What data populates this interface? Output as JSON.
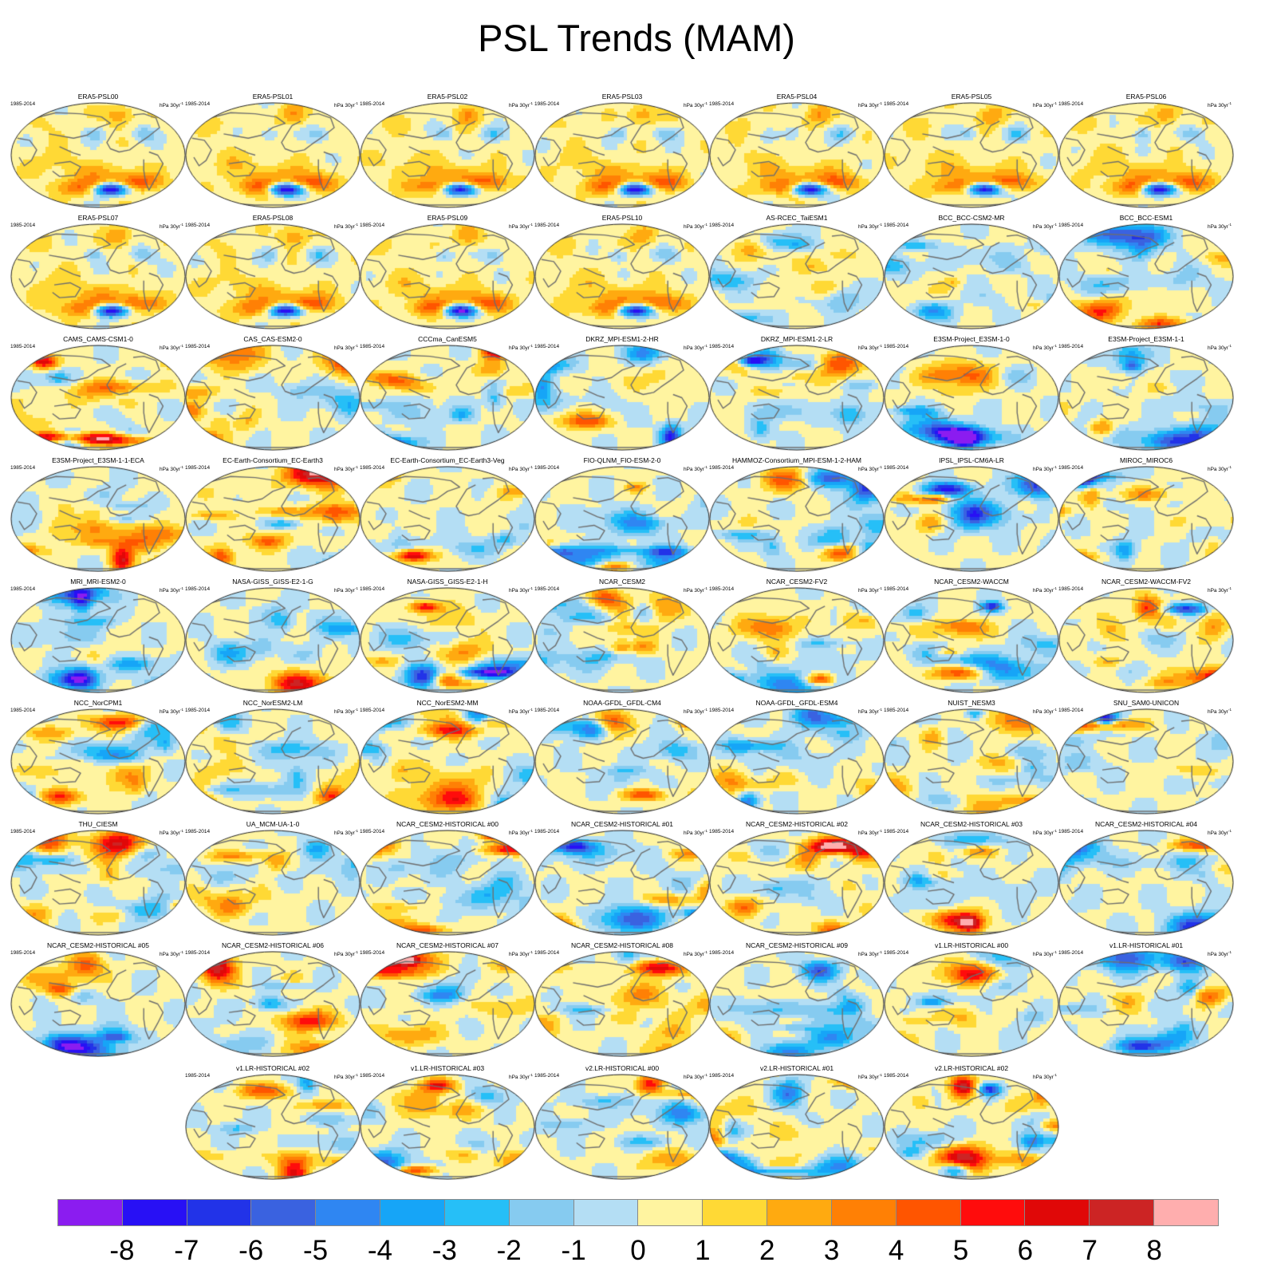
{
  "figure": {
    "title": "PSL Trends (MAM)",
    "period": "1985-2014",
    "units": {
      "base": "hPa 30yr",
      "sup": "-1"
    }
  },
  "panels": [
    {
      "name": "ERA5-PSL00",
      "pattern": "era5"
    },
    {
      "name": "ERA5-PSL01",
      "pattern": "era5"
    },
    {
      "name": "ERA5-PSL02",
      "pattern": "era5"
    },
    {
      "name": "ERA5-PSL03",
      "pattern": "era5"
    },
    {
      "name": "ERA5-PSL04",
      "pattern": "era5"
    },
    {
      "name": "ERA5-PSL05",
      "pattern": "era5"
    },
    {
      "name": "ERA5-PSL06",
      "pattern": "era5"
    },
    {
      "name": "ERA5-PSL07",
      "pattern": "era5"
    },
    {
      "name": "ERA5-PSL08",
      "pattern": "era5"
    },
    {
      "name": "ERA5-PSL09",
      "pattern": "era5"
    },
    {
      "name": "ERA5-PSL10",
      "pattern": "era5"
    },
    {
      "name": "AS-RCEC_TaiESM1",
      "pattern": "model"
    },
    {
      "name": "BCC_BCC-CSM2-MR",
      "pattern": "model"
    },
    {
      "name": "BCC_BCC-ESM1",
      "pattern": "model"
    },
    {
      "name": "CAMS_CAMS-CSM1-0",
      "pattern": "model"
    },
    {
      "name": "CAS_CAS-ESM2-0",
      "pattern": "model"
    },
    {
      "name": "CCCma_CanESM5",
      "pattern": "model"
    },
    {
      "name": "DKRZ_MPI-ESM1-2-HR",
      "pattern": "model"
    },
    {
      "name": "DKRZ_MPI-ESM1-2-LR",
      "pattern": "model"
    },
    {
      "name": "E3SM-Project_E3SM-1-0",
      "pattern": "model"
    },
    {
      "name": "E3SM-Project_E3SM-1-1",
      "pattern": "model"
    },
    {
      "name": "E3SM-Project_E3SM-1-1-ECA",
      "pattern": "model"
    },
    {
      "name": "EC-Earth-Consortium_EC-Earth3",
      "pattern": "model"
    },
    {
      "name": "EC-Earth-Consortium_EC-Earth3-Veg",
      "pattern": "model"
    },
    {
      "name": "FIO-QLNM_FIO-ESM-2-0",
      "pattern": "model"
    },
    {
      "name": "HAMMOZ-Consortium_MPI-ESM-1-2-HAM",
      "pattern": "model"
    },
    {
      "name": "IPSL_IPSL-CM6A-LR",
      "pattern": "model"
    },
    {
      "name": "MIROC_MIROC6",
      "pattern": "model"
    },
    {
      "name": "MRI_MRI-ESM2-0",
      "pattern": "model"
    },
    {
      "name": "NASA-GISS_GISS-E2-1-G",
      "pattern": "model"
    },
    {
      "name": "NASA-GISS_GISS-E2-1-H",
      "pattern": "model"
    },
    {
      "name": "NCAR_CESM2",
      "pattern": "model"
    },
    {
      "name": "NCAR_CESM2-FV2",
      "pattern": "model"
    },
    {
      "name": "NCAR_CESM2-WACCM",
      "pattern": "model"
    },
    {
      "name": "NCAR_CESM2-WACCM-FV2",
      "pattern": "model"
    },
    {
      "name": "NCC_NorCPM1",
      "pattern": "model"
    },
    {
      "name": "NCC_NorESM2-LM",
      "pattern": "model"
    },
    {
      "name": "NCC_NorESM2-MM",
      "pattern": "model"
    },
    {
      "name": "NOAA-GFDL_GFDL-CM4",
      "pattern": "model"
    },
    {
      "name": "NOAA-GFDL_GFDL-ESM4",
      "pattern": "model"
    },
    {
      "name": "NUIST_NESM3",
      "pattern": "model"
    },
    {
      "name": "SNU_SAM0-UNICON",
      "pattern": "model"
    },
    {
      "name": "THU_CIESM",
      "pattern": "model"
    },
    {
      "name": "UA_MCM-UA-1-0",
      "pattern": "model"
    },
    {
      "name": "NCAR_CESM2-HISTORICAL  #00",
      "pattern": "model"
    },
    {
      "name": "NCAR_CESM2-HISTORICAL  #01",
      "pattern": "model"
    },
    {
      "name": "NCAR_CESM2-HISTORICAL  #02",
      "pattern": "model"
    },
    {
      "name": "NCAR_CESM2-HISTORICAL  #03",
      "pattern": "model"
    },
    {
      "name": "NCAR_CESM2-HISTORICAL  #04",
      "pattern": "model"
    },
    {
      "name": "NCAR_CESM2-HISTORICAL  #05",
      "pattern": "model"
    },
    {
      "name": "NCAR_CESM2-HISTORICAL  #06",
      "pattern": "model"
    },
    {
      "name": "NCAR_CESM2-HISTORICAL  #07",
      "pattern": "model"
    },
    {
      "name": "NCAR_CESM2-HISTORICAL  #08",
      "pattern": "model"
    },
    {
      "name": "NCAR_CESM2-HISTORICAL  #09",
      "pattern": "model"
    },
    {
      "name": "v1.LR-HISTORICAL  #00",
      "pattern": "model"
    },
    {
      "name": "v1.LR-HISTORICAL  #01",
      "pattern": "model"
    },
    {
      "name": "v1.LR-HISTORICAL  #02",
      "pattern": "model"
    },
    {
      "name": "v1.LR-HISTORICAL  #03",
      "pattern": "model"
    },
    {
      "name": "v2.LR-HISTORICAL  #00",
      "pattern": "model"
    },
    {
      "name": "v2.LR-HISTORICAL  #01",
      "pattern": "model"
    },
    {
      "name": "v2.LR-HISTORICAL  #02",
      "pattern": "model"
    }
  ],
  "colorbar": {
    "labels": [
      "-8",
      "-7",
      "-6",
      "-5",
      "-4",
      "-3",
      "-2",
      "-1",
      "0",
      "1",
      "2",
      "3",
      "4",
      "5",
      "6",
      "7",
      "8"
    ],
    "colors": [
      "#8b1cf0",
      "#2810f5",
      "#2233e8",
      "#3a62e0",
      "#2f86f2",
      "#16a5f7",
      "#26bff7",
      "#86cbf0",
      "#b4def4",
      "#fff4a0",
      "#ffd935",
      "#ffaa10",
      "#ff8005",
      "#ff5500",
      "#ff0c0c",
      "#e00808",
      "#cc2424",
      "#ffaeae"
    ]
  }
}
